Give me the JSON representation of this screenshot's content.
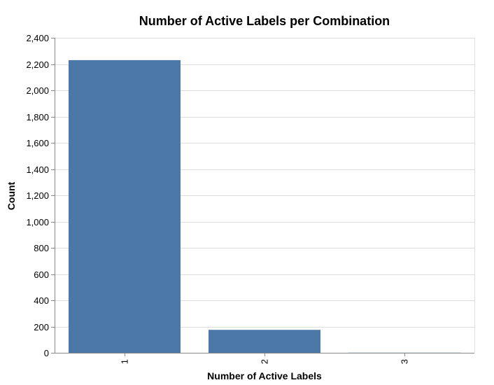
{
  "chart_data": {
    "type": "bar",
    "title": "Number of Active Labels per Combination",
    "xlabel": "Number of Active Labels",
    "ylabel": "Count",
    "categories": [
      "1",
      "2",
      "3"
    ],
    "values": [
      2230,
      175,
      1
    ],
    "ylim": [
      0,
      2400
    ],
    "yticks": [
      "0",
      "200",
      "400",
      "600",
      "800",
      "1,000",
      "1,200",
      "1,400",
      "1,600",
      "1,800",
      "2,000",
      "2,200",
      "2,400"
    ],
    "grid": true,
    "bar_color": "#4c78a8"
  }
}
